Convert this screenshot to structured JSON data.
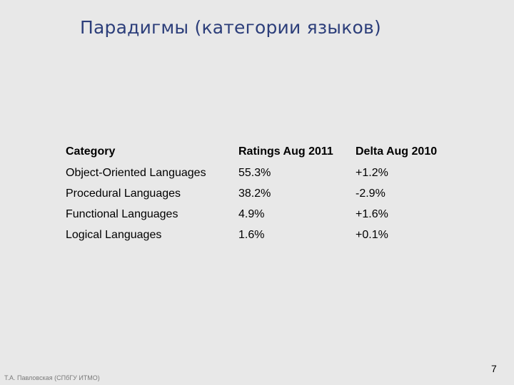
{
  "slide": {
    "title": "Парадигмы (категории языков)",
    "footer_author": "Т.А. Павловская (СПбГУ ИТМО)",
    "page_number": "7"
  },
  "table": {
    "headers": [
      "Category",
      "Ratings Aug 2011",
      "Delta Aug 2010"
    ],
    "rows": [
      [
        "Object-Oriented Languages",
        "55.3%",
        "+1.2%"
      ],
      [
        "Procedural Languages",
        "38.2%",
        "-2.9%"
      ],
      [
        "Functional Languages",
        "4.9%",
        "+1.6%"
      ],
      [
        "Logical Languages",
        "1.6%",
        "+0.1%"
      ]
    ]
  }
}
